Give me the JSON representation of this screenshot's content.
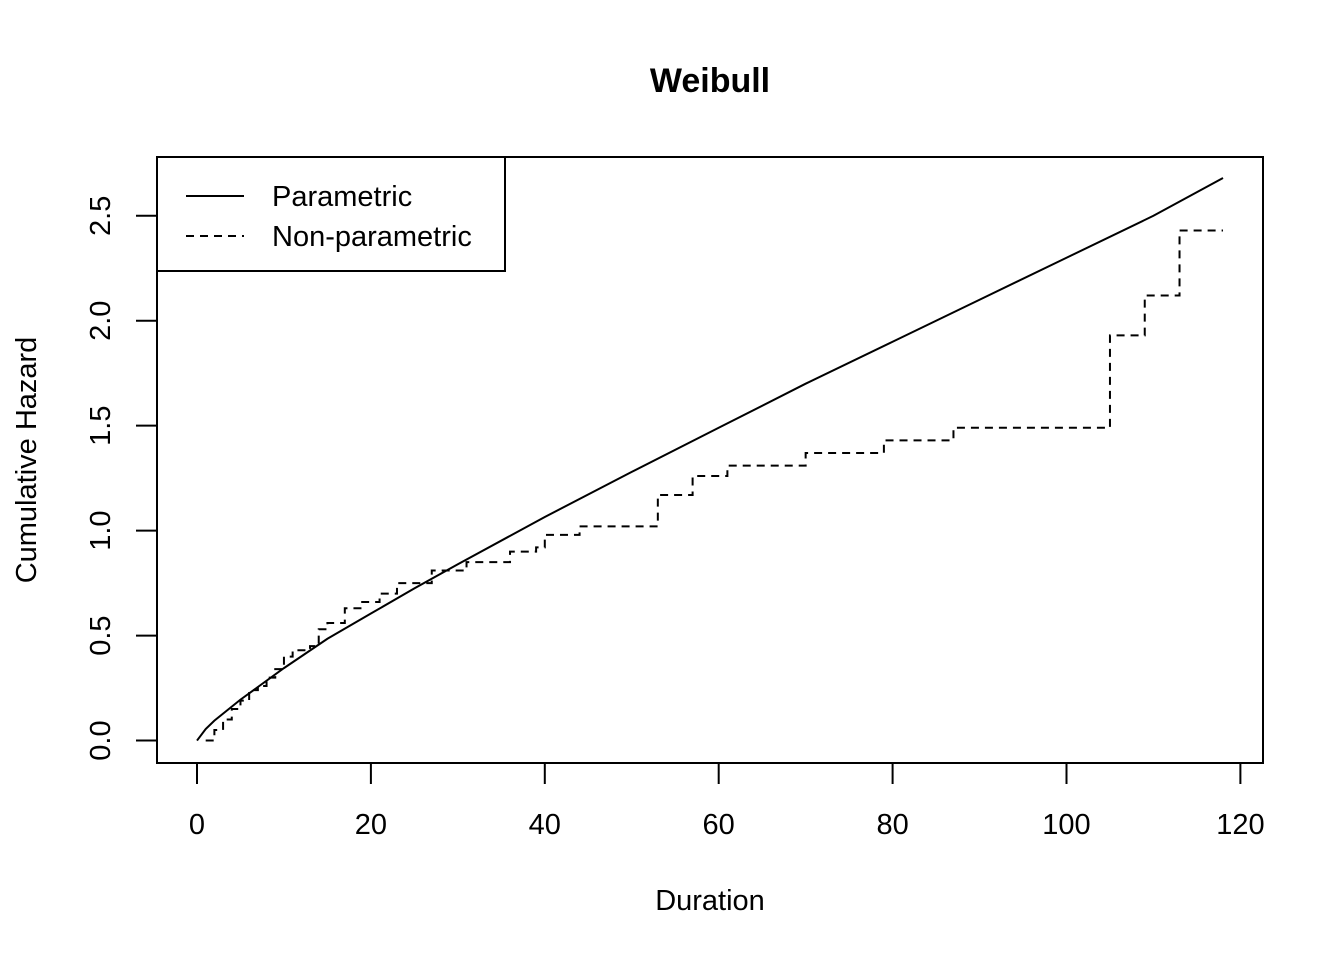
{
  "chart_data": {
    "type": "line",
    "title": "Weibull",
    "xlabel": "Duration",
    "ylabel": "Cumulative Hazard",
    "xlim": [
      -4.6,
      122.6
    ],
    "ylim": [
      -0.107,
      2.78
    ],
    "x_ticks": [
      "0",
      "20",
      "40",
      "60",
      "80",
      "100",
      "120"
    ],
    "y_ticks": [
      "0.0",
      "0.5",
      "1.0",
      "1.5",
      "2.0",
      "2.5"
    ],
    "legend": {
      "position": "top-left",
      "entries": [
        {
          "label": "Parametric",
          "line_style": "solid"
        },
        {
          "label": "Non-parametric",
          "line_style": "dashed"
        }
      ]
    },
    "series": [
      {
        "name": "Parametric",
        "line_style": "solid",
        "color": "#000000",
        "points": [
          [
            0,
            0
          ],
          [
            1,
            0.055
          ],
          [
            2,
            0.095
          ],
          [
            5,
            0.195
          ],
          [
            10,
            0.345
          ],
          [
            15,
            0.485
          ],
          [
            20,
            0.605
          ],
          [
            25,
            0.725
          ],
          [
            30,
            0.84
          ],
          [
            40,
            1.065
          ],
          [
            50,
            1.28
          ],
          [
            60,
            1.49
          ],
          [
            70,
            1.7
          ],
          [
            80,
            1.9
          ],
          [
            90,
            2.1
          ],
          [
            100,
            2.3
          ],
          [
            110,
            2.5
          ],
          [
            118,
            2.68
          ]
        ]
      },
      {
        "name": "Non-parametric",
        "line_style": "dashed",
        "step": true,
        "color": "#000000",
        "points": [
          [
            1,
            0
          ],
          [
            2,
            0.05
          ],
          [
            3,
            0.1
          ],
          [
            4,
            0.15
          ],
          [
            5,
            0.19
          ],
          [
            6,
            0.24
          ],
          [
            7,
            0.26
          ],
          [
            8,
            0.3
          ],
          [
            9,
            0.34
          ],
          [
            10,
            0.4
          ],
          [
            11,
            0.43
          ],
          [
            13,
            0.45
          ],
          [
            14,
            0.53
          ],
          [
            15,
            0.56
          ],
          [
            17,
            0.63
          ],
          [
            19,
            0.66
          ],
          [
            21,
            0.7
          ],
          [
            23,
            0.75
          ],
          [
            27,
            0.81
          ],
          [
            31,
            0.85
          ],
          [
            36,
            0.9
          ],
          [
            39,
            0.92
          ],
          [
            40,
            0.98
          ],
          [
            44,
            1.02
          ],
          [
            53,
            1.17
          ],
          [
            57,
            1.26
          ],
          [
            61,
            1.31
          ],
          [
            70,
            1.37
          ],
          [
            79,
            1.43
          ],
          [
            87,
            1.49
          ],
          [
            105,
            1.93
          ],
          [
            109,
            2.12
          ],
          [
            113,
            2.43
          ],
          [
            118,
            2.43
          ]
        ]
      }
    ]
  }
}
